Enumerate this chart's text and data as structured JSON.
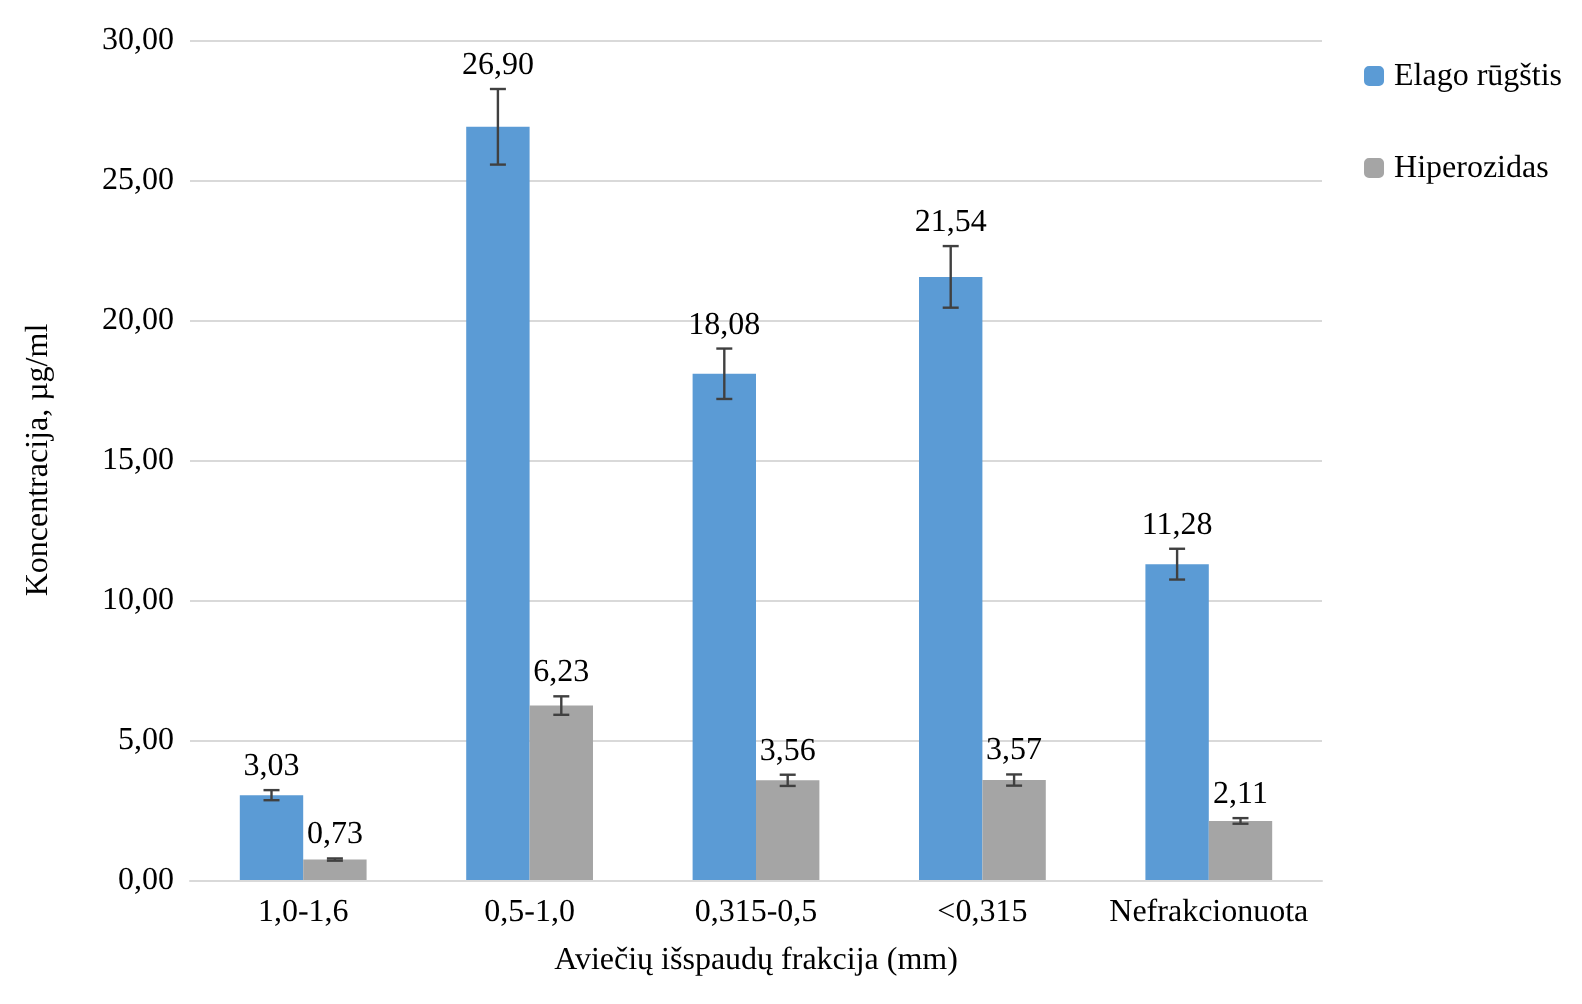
{
  "chart_data": {
    "type": "bar",
    "xlabel": "Aviečių išspaudų frakcija (mm)",
    "ylabel": "Koncentracija, µg/ml",
    "categories": [
      "1,0-1,6",
      "0,5-1,0",
      "0,315-0,5",
      "<0,315",
      "Nefrakcionuota"
    ],
    "series": [
      {
        "name": "Elago rūgštis",
        "color": "#5b9bd5",
        "values": [
          3.03,
          26.9,
          18.08,
          21.54,
          11.28
        ],
        "errors": [
          0.18,
          1.35,
          0.9,
          1.1,
          0.55
        ],
        "value_labels": [
          "3,03",
          "26,90",
          "18,08",
          "21,54",
          "11,28"
        ]
      },
      {
        "name": "Hiperozidas",
        "color": "#a5a5a5",
        "values": [
          0.73,
          6.23,
          3.56,
          3.57,
          2.11
        ],
        "errors": [
          0.04,
          0.33,
          0.2,
          0.2,
          0.1
        ],
        "value_labels": [
          "0,73",
          "6,23",
          "3,56",
          "3,57",
          "2,11"
        ]
      }
    ],
    "ylim": [
      0,
      30
    ],
    "yticks": [
      {
        "value": 0,
        "label": "0,00"
      },
      {
        "value": 5,
        "label": "5,00"
      },
      {
        "value": 10,
        "label": "10,00"
      },
      {
        "value": 15,
        "label": "15,00"
      },
      {
        "value": 20,
        "label": "20,00"
      },
      {
        "value": 25,
        "label": "25,00"
      },
      {
        "value": 30,
        "label": "30,00"
      }
    ],
    "grid": "y",
    "legend": "right"
  }
}
